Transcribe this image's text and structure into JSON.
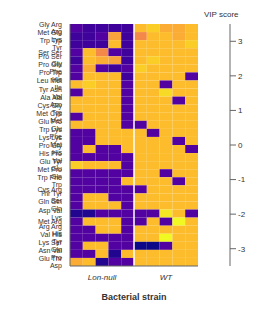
{
  "chart_data": {
    "type": "heatmap",
    "xlabel": "Bacterial strain",
    "tick_labels": "y",
    "rows": [
      "Gly Arg Arg",
      "Met Glu Lys",
      "Trp Trp Tyr",
      "Ser Ser",
      "Pro Ser Gly",
      "Pro Glu Phe",
      "Pro Trp His",
      "Leu Met Ile",
      "Tyr Asn Val",
      "Ala Ala Asn",
      "Cys Gly Trp",
      "Met Cys Met",
      "Glu Pro Glu",
      "Trp Lys Phe",
      "Lys Lys Met",
      "Pro Gly His",
      "His Pro Val",
      "Glu Tyr Glu",
      "Met Pro Gln",
      "Trp Phe Trp",
      "Cys Arg",
      "Thr Tyr Ser",
      "Gln Gln Gln",
      "Asp Val Lys",
      "Met Arg",
      "Arg Arg His",
      "Val His Tyr",
      "Lys Ser Gln",
      "Asn Val Pro",
      "Glu Thr Asp"
    ],
    "groups": [
      {
        "name": "Lon-null",
        "size": 5
      },
      {
        "name": "WT",
        "size": 5
      }
    ],
    "values": [
      [
        -2.5,
        -2.8,
        -2.8,
        -2.8,
        -2.8,
        2.5,
        2.8,
        2.2,
        2.2,
        2.5
      ],
      [
        -2.8,
        -2.8,
        -2.5,
        2.0,
        -2.8,
        1.5,
        2.5,
        2.5,
        2.2,
        2.5
      ],
      [
        -2.8,
        -2.8,
        -2.8,
        2.5,
        -2.8,
        2.5,
        2.5,
        2.5,
        2.5,
        2.8
      ],
      [
        -2.5,
        2.5,
        1.5,
        -2.5,
        -2.8,
        2.5,
        2.5,
        2.5,
        2.5,
        2.5
      ],
      [
        -2.8,
        2.5,
        2.2,
        2.0,
        -2.8,
        2.5,
        2.8,
        2.5,
        2.5,
        2.5
      ],
      [
        -2.5,
        2.2,
        -2.5,
        -2.8,
        -2.5,
        2.8,
        2.5,
        2.5,
        2.5,
        2.5
      ],
      [
        -2.5,
        2.5,
        2.5,
        2.5,
        -2.8,
        2.5,
        2.5,
        2.5,
        2.5,
        -2.5
      ],
      [
        2.5,
        2.8,
        2.5,
        2.5,
        -2.5,
        2.5,
        2.5,
        -2.5,
        2.5,
        2.5
      ],
      [
        -2.5,
        2.5,
        2.5,
        2.5,
        -2.5,
        2.5,
        2.5,
        3.0,
        2.5,
        2.5
      ],
      [
        2.5,
        2.5,
        2.5,
        2.5,
        -2.5,
        2.5,
        2.5,
        2.5,
        -2.5,
        2.5
      ],
      [
        2.5,
        2.5,
        2.5,
        2.5,
        -2.5,
        2.5,
        2.5,
        2.5,
        2.5,
        2.5
      ],
      [
        -2.5,
        2.5,
        2.5,
        2.5,
        -2.5,
        2.5,
        2.5,
        2.5,
        2.5,
        2.5
      ],
      [
        2.5,
        2.5,
        2.5,
        2.5,
        -2.5,
        -2.5,
        2.5,
        2.5,
        2.5,
        2.5
      ],
      [
        -2.5,
        -2.5,
        2.5,
        2.5,
        2.5,
        2.5,
        -2.5,
        2.5,
        2.5,
        2.5
      ],
      [
        -2.5,
        -2.5,
        2.5,
        2.5,
        2.5,
        2.5,
        2.5,
        2.5,
        -2.5,
        2.5
      ],
      [
        -2.5,
        2.5,
        -2.5,
        -2.5,
        2.5,
        2.5,
        2.5,
        2.5,
        2.5,
        -2.5
      ],
      [
        -2.5,
        -2.5,
        -2.5,
        -2.5,
        -2.5,
        2.5,
        2.5,
        2.5,
        2.5,
        2.5
      ],
      [
        2.8,
        2.5,
        2.5,
        2.5,
        -2.5,
        2.5,
        2.5,
        2.5,
        2.5,
        2.5
      ],
      [
        -2.5,
        -2.5,
        -2.5,
        -2.5,
        -2.5,
        2.5,
        2.5,
        -2.5,
        2.5,
        2.5
      ],
      [
        -2.5,
        -2.5,
        -2.5,
        -2.5,
        2.5,
        2.5,
        2.5,
        2.5,
        -2.5,
        2.5
      ],
      [
        -2.5,
        -2.5,
        -2.5,
        -2.5,
        -2.5,
        -2.5,
        2.5,
        2.5,
        2.5,
        2.5
      ],
      [
        -2.5,
        2.5,
        2.5,
        -2.5,
        -2.5,
        2.5,
        2.5,
        2.5,
        2.5,
        2.5
      ],
      [
        -2.5,
        2.5,
        2.5,
        2.5,
        -2.5,
        2.5,
        2.5,
        2.5,
        2.5,
        2.5
      ],
      [
        -3.2,
        -3.2,
        -2.5,
        -2.5,
        -2.5,
        -2.5,
        -2.5,
        3.2,
        2.5,
        -2.5
      ],
      [
        -2.5,
        2.5,
        2.5,
        2.5,
        -2.5,
        -2.5,
        2.5,
        -2.5,
        3.5,
        2.5
      ],
      [
        -2.5,
        -2.5,
        2.5,
        2.5,
        -2.5,
        2.5,
        2.5,
        2.5,
        2.5,
        2.5
      ],
      [
        -2.5,
        -2.5,
        -2.5,
        -2.5,
        -2.5,
        2.5,
        2.5,
        3.5,
        2.5,
        2.5
      ],
      [
        -2.5,
        2.5,
        2.5,
        -2.5,
        -2.5,
        -3.5,
        -3.5,
        -2.5,
        2.5,
        2.5
      ],
      [
        -2.5,
        -2.5,
        2.5,
        -3.2,
        2.5,
        2.5,
        2.5,
        2.5,
        2.5,
        2.5
      ],
      [
        2.2,
        2.5,
        -3.2,
        -2.5,
        -2.5,
        2.5,
        2.5,
        2.5,
        2.5,
        2.5
      ]
    ],
    "colorbar_label": "VIP score",
    "colorbar_lim": [
      -3.5,
      3.5
    ],
    "colorbar_ticks": [
      -3,
      -2,
      -1,
      0,
      1,
      2,
      3
    ]
  }
}
